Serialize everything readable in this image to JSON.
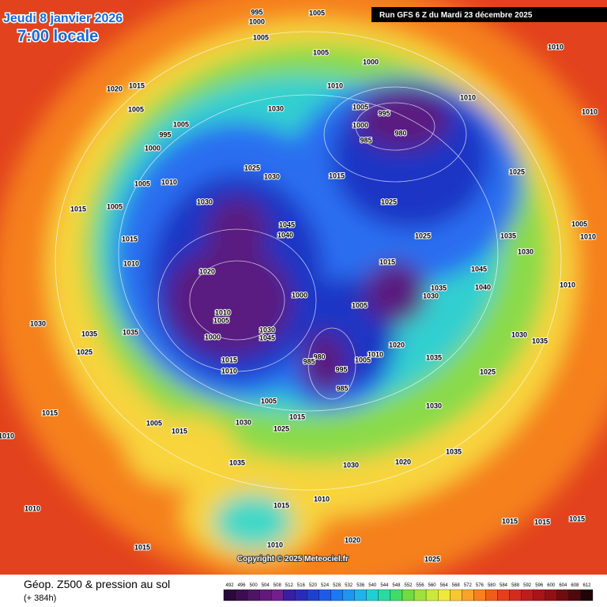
{
  "header": {
    "date": "Jeudi 8 janvier 2026",
    "time": "7:00 locale",
    "run": "Run GFS 6 Z du Mardi 23 décembre 2025"
  },
  "footer": {
    "title": "Géop. Z500 & pression au sol",
    "lead": "(+ 384h)",
    "copyright": "Copyright © 2025 Meteociel.fr"
  },
  "scale": {
    "labels": [
      "492",
      "496",
      "500",
      "504",
      "508",
      "512",
      "516",
      "520",
      "524",
      "528",
      "532",
      "536",
      "540",
      "544",
      "548",
      "552",
      "556",
      "560",
      "564",
      "568",
      "572",
      "576",
      "580",
      "584",
      "588",
      "592",
      "596",
      "600",
      "604",
      "608",
      "612"
    ],
    "colors": [
      "#2a0a3a",
      "#3c0e50",
      "#501466",
      "#62197a",
      "#741e8c",
      "#3a1ea0",
      "#2a2cb8",
      "#1e40d0",
      "#1e5ae6",
      "#1e78f0",
      "#1e96f0",
      "#20b4e6",
      "#20d0d0",
      "#28dca0",
      "#40dc6a",
      "#70dc40",
      "#a0e03c",
      "#cce83c",
      "#f0e83c",
      "#f8c830",
      "#f8a428",
      "#f88020",
      "#f05c1c",
      "#e4401c",
      "#d42c1c",
      "#c01c1c",
      "#a81418",
      "#901014",
      "#700c10",
      "#50080c",
      "#200408"
    ]
  },
  "isobar_labels": [
    "995",
    "1000",
    "1005",
    "1005",
    "1005",
    "1000",
    "1010",
    "1010",
    "1015",
    "1020",
    "1005",
    "1030",
    "995",
    "1005",
    "1000",
    "1010",
    "1010",
    "1005",
    "995",
    "1000",
    "980",
    "985",
    "1025",
    "1030",
    "1015",
    "1025",
    "1010",
    "1005",
    "1030",
    "1015",
    "1005",
    "1025",
    "1045",
    "1040",
    "1025",
    "1035",
    "1005",
    "1010",
    "1015",
    "1030",
    "1010",
    "1015",
    "1045",
    "1020",
    "1035",
    "1000",
    "1040",
    "1030",
    "1010",
    "1005",
    "1010",
    "1005",
    "1030",
    "1000",
    "1045",
    "1030",
    "1035",
    "1035",
    "1030",
    "1035",
    "980",
    "985",
    "1010",
    "1020",
    "1015",
    "1010",
    "1035",
    "1005",
    "1025",
    "1025",
    "995",
    "985",
    "1005",
    "1015",
    "1015",
    "1030",
    "1005",
    "1015",
    "1030",
    "1025",
    "1010",
    "1035",
    "1020",
    "1030",
    "1035",
    "1010",
    "1015",
    "1010",
    "1015",
    "1015",
    "1015",
    "1015",
    "1010",
    "1020",
    "1025"
  ]
}
